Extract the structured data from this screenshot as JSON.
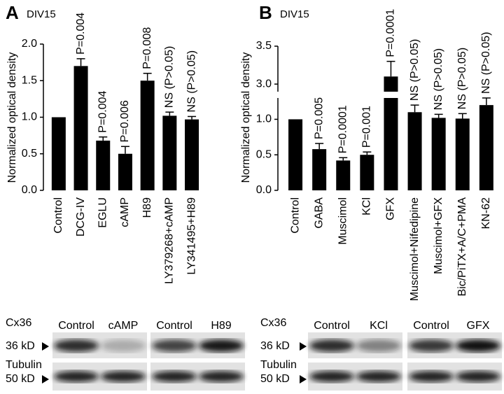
{
  "chart_data": [
    {
      "type": "bar",
      "panel": "A",
      "subtitle": "DIV15",
      "ylabel": "Normalized optical density",
      "categories": [
        "Control",
        "DCG-IV",
        "EGLU",
        "cAMP",
        "H89",
        "LY379268+cAMP",
        "LY341495+H89"
      ],
      "values": [
        1.0,
        1.7,
        0.68,
        0.5,
        1.5,
        1.02,
        0.97
      ],
      "errors": [
        null,
        0.1,
        0.05,
        0.1,
        0.1,
        0.05,
        0.04
      ],
      "annotations": [
        null,
        "P=0.004",
        "P=0.004",
        "P=0.006",
        "P=0.008",
        "NS (P>0.05)",
        "NS (P>0.05)"
      ],
      "color": "#000000",
      "ylim": [
        0,
        2
      ],
      "yticks": [
        {
          "value": 0,
          "label": "0.0"
        },
        0.5,
        {
          "value": 1,
          "label": "1.0"
        },
        1.5,
        {
          "value": 2,
          "label": "2.0"
        }
      ],
      "blot": {
        "lanes": [
          "Control",
          "cAMP",
          "Control",
          "H89"
        ],
        "rows": [
          {
            "protein": "Cx36",
            "size": "36 kD"
          },
          {
            "protein": "Tubulin",
            "size": "50 kD"
          }
        ]
      }
    },
    {
      "type": "bar",
      "panel": "B",
      "subtitle": "DIV15",
      "ylabel": "Normalized optical density",
      "categories": [
        "Control",
        "GABA",
        "Muscimol",
        "KCl",
        "GFX",
        "Muscimol+Nifedipine",
        "Muscimol+GFX",
        "Bic/PiTX+A/C+PMA",
        "KN-62"
      ],
      "values": [
        1.0,
        0.58,
        0.42,
        0.5,
        3.1,
        1.1,
        1.02,
        1.01,
        1.2
      ],
      "errors": [
        null,
        0.08,
        0.04,
        0.04,
        0.2,
        0.1,
        0.05,
        0.07,
        0.1
      ],
      "annotations": [
        null,
        "P=0.005",
        "P=0.0001",
        "P=0.001",
        "P=0.0001",
        "NS (P>0.05)",
        "NS (P>0.05)",
        "NS (P>0.05)",
        "NS (P>0.05)"
      ],
      "color": "#000000",
      "ylim": [
        0,
        3.5
      ],
      "y_break": [
        1.3,
        2.9
      ],
      "yticks": [
        {
          "value": 0,
          "label": "0.0"
        },
        0.5,
        {
          "value": 1,
          "label": "1.0"
        },
        {
          "value": 3,
          "label": "3.0"
        },
        3.5
      ],
      "blot": {
        "lanes": [
          "Control",
          "KCl",
          "Control",
          "GFX"
        ],
        "rows": [
          {
            "protein": "Cx36",
            "size": "36 kD"
          },
          {
            "protein": "Tubulin",
            "size": "50 kD"
          }
        ]
      }
    }
  ]
}
